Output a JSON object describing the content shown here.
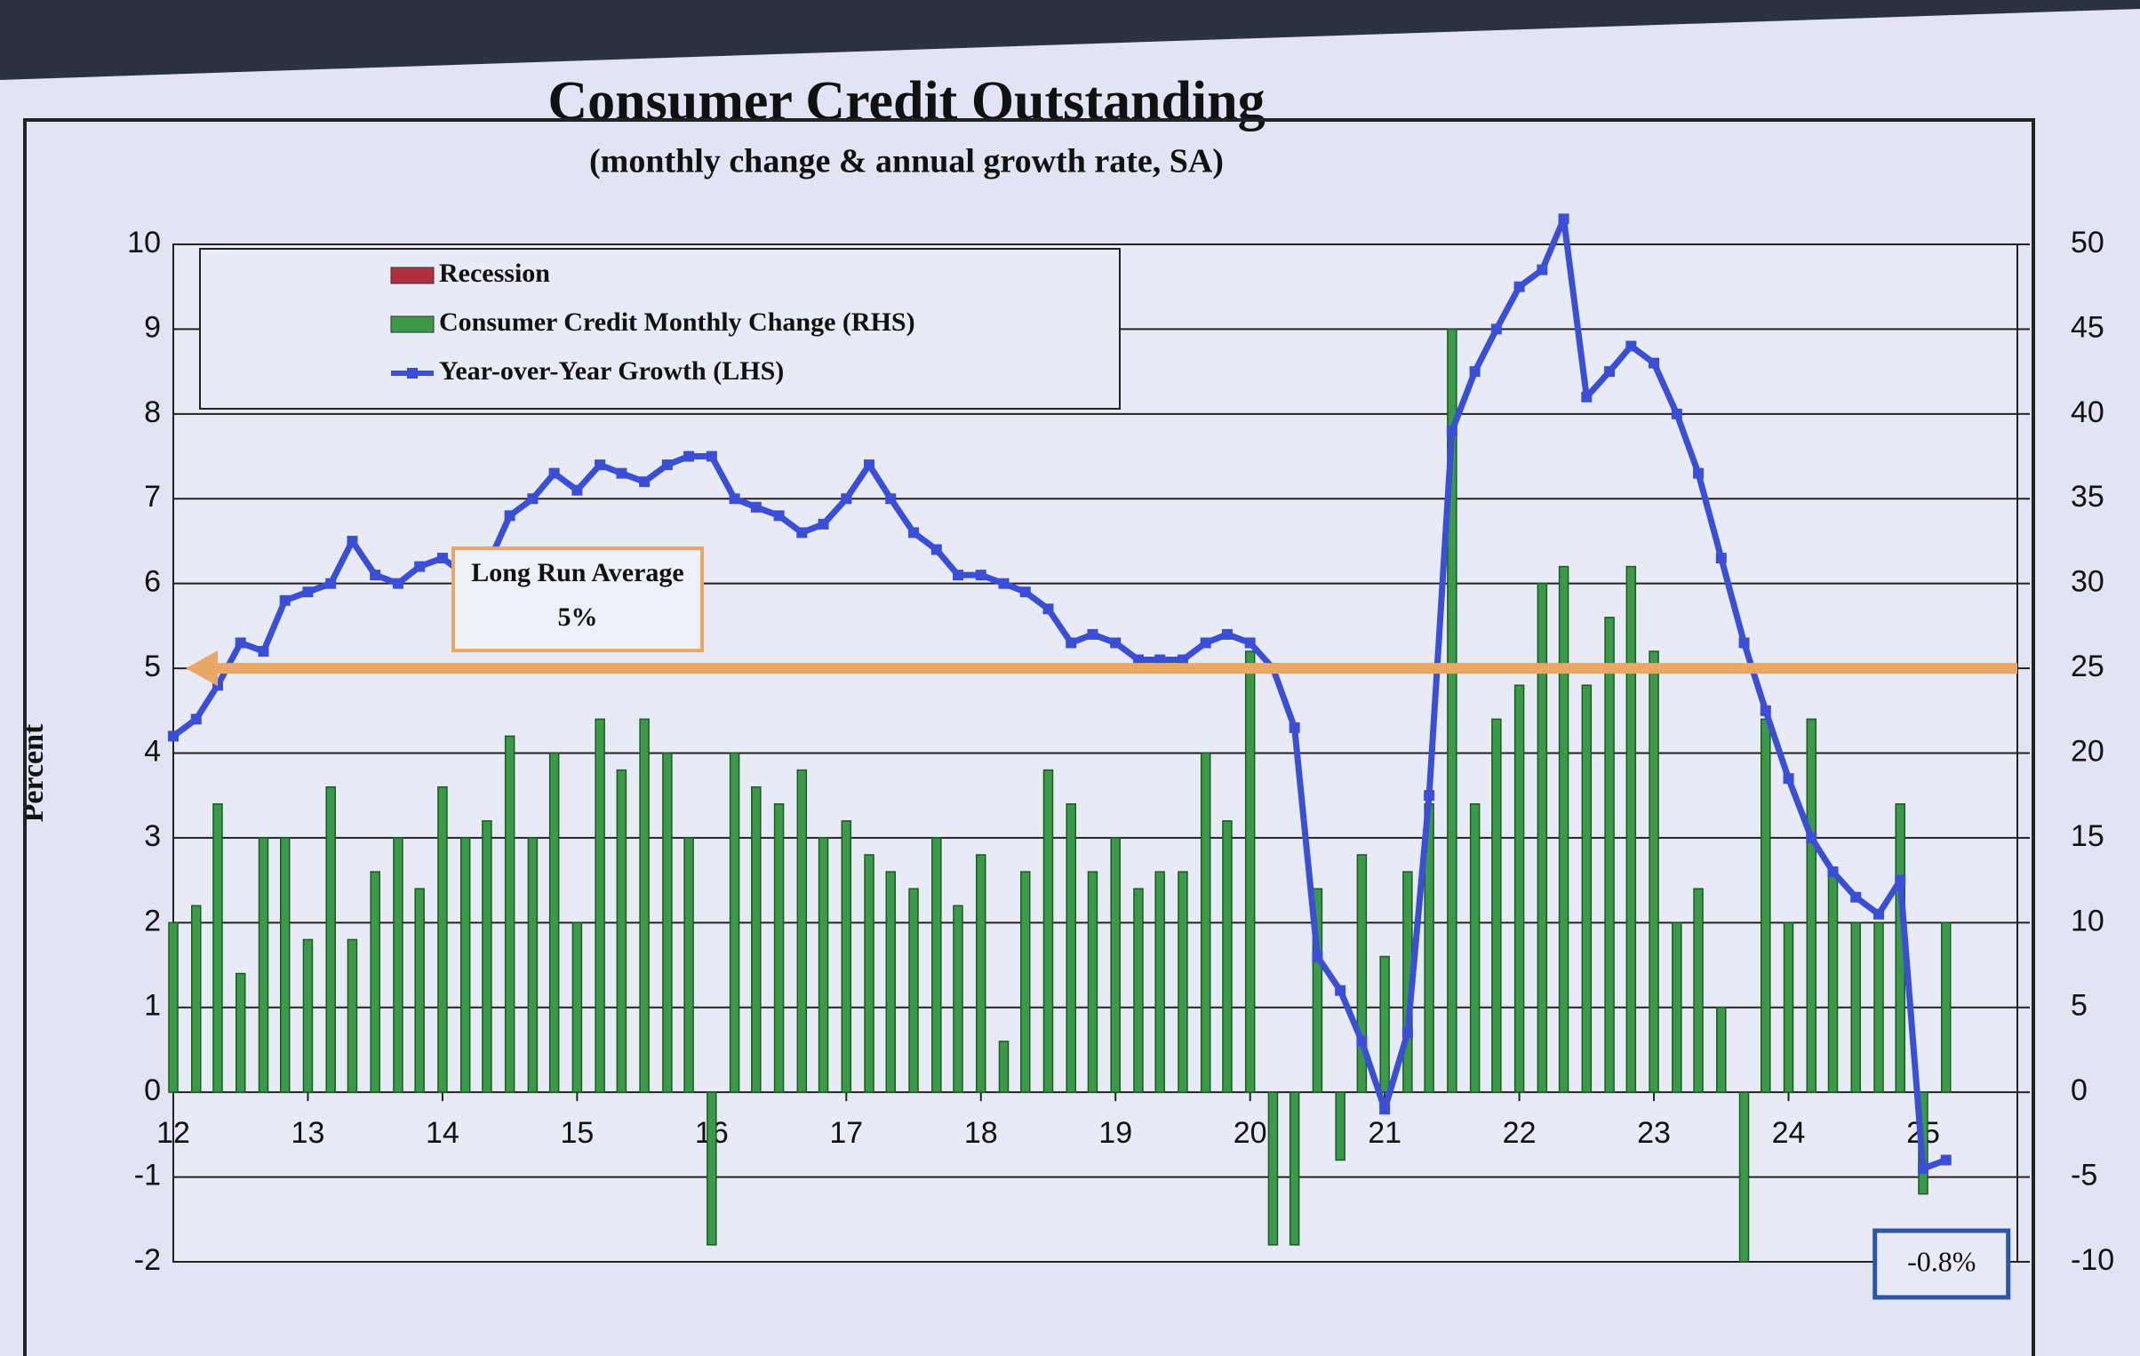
{
  "chart_data": {
    "type": "bar-line",
    "title": "Consumer Credit Outstanding",
    "subtitle": "(monthly change & annual growth rate, SA)",
    "ylabel": "Percent",
    "recession": {
      "name": "Recession",
      "color": "#b03040"
    },
    "x": [
      12,
      12.17,
      12.33,
      12.5,
      12.67,
      12.83,
      13,
      13.17,
      13.33,
      13.5,
      13.67,
      13.83,
      14,
      14.17,
      14.33,
      14.5,
      14.67,
      14.83,
      15,
      15.17,
      15.33,
      15.5,
      15.67,
      15.83,
      16,
      16.17,
      16.33,
      16.5,
      16.67,
      16.83,
      17,
      17.17,
      17.33,
      17.5,
      17.67,
      17.83,
      18,
      18.17,
      18.33,
      18.5,
      18.67,
      18.83,
      19,
      19.17,
      19.33,
      19.5,
      19.67,
      19.83,
      20,
      20.17,
      20.33,
      20.5,
      20.67,
      20.83,
      21,
      21.17,
      21.33,
      21.5,
      21.67,
      21.83,
      22,
      22.17,
      22.33,
      22.5,
      22.67,
      22.83,
      23,
      23.17,
      23.33,
      23.5,
      23.67,
      23.83,
      24,
      24.17,
      24.33,
      24.5,
      24.67,
      24.83,
      25,
      25.17
    ],
    "series": [
      {
        "name": "Consumer Credit Monthly Change (RHS)",
        "color": "#3a9a48",
        "axis": "y2",
        "values": [
          10,
          11,
          17,
          7,
          15,
          15,
          9,
          18,
          9,
          13,
          15,
          12,
          18,
          15,
          16,
          21,
          15,
          20,
          10,
          22,
          19,
          22,
          20,
          15,
          -9,
          20,
          18,
          17,
          19,
          15,
          16,
          14,
          13,
          12,
          15,
          11,
          14,
          3,
          13,
          19,
          17,
          13,
          15,
          12,
          13,
          13,
          20,
          16,
          26,
          -9,
          -9,
          12,
          -4,
          14,
          8,
          13,
          17,
          45,
          17,
          22,
          24,
          30,
          31,
          24,
          28,
          31,
          26,
          10,
          12,
          5,
          -10,
          22,
          10,
          22,
          13,
          10,
          10,
          17,
          -6,
          10
        ]
      },
      {
        "name": "Year-over-Year Growth (LHS)",
        "color": "#3a4fd6",
        "axis": "y",
        "values": [
          4.2,
          4.4,
          4.8,
          5.3,
          5.2,
          5.8,
          5.9,
          6.0,
          6.5,
          6.1,
          6.0,
          6.2,
          6.3,
          6.1,
          6.2,
          6.8,
          7.0,
          7.3,
          7.1,
          7.4,
          7.3,
          7.2,
          7.4,
          7.5,
          7.5,
          7.0,
          6.9,
          6.8,
          6.6,
          6.7,
          7.0,
          7.4,
          7.0,
          6.6,
          6.4,
          6.1,
          6.1,
          6.0,
          5.9,
          5.7,
          5.3,
          5.4,
          5.3,
          5.1,
          5.1,
          5.1,
          5.3,
          5.4,
          5.3,
          5.0,
          4.3,
          1.6,
          1.2,
          0.6,
          -0.2,
          0.7,
          3.5,
          7.8,
          8.5,
          9.0,
          9.5,
          9.7,
          10.3,
          8.2,
          8.5,
          8.8,
          8.6,
          8.0,
          7.3,
          6.3,
          5.3,
          4.5,
          3.7,
          3.0,
          2.6,
          2.3,
          2.1,
          2.5,
          -0.9,
          -0.8
        ]
      }
    ],
    "xlim": [
      12,
      25.7
    ],
    "xticks": [
      12,
      13,
      14,
      15,
      16,
      17,
      18,
      19,
      20,
      21,
      22,
      23,
      24,
      25
    ],
    "ylim": [
      -2,
      10
    ],
    "yticks": [
      -2,
      -1,
      0,
      1,
      2,
      3,
      4,
      5,
      6,
      7,
      8,
      9,
      10
    ],
    "y2lim": [
      -10,
      50
    ],
    "y2ticks": [
      -10,
      -5,
      0,
      5,
      10,
      15,
      20,
      25,
      30,
      35,
      40,
      45,
      50
    ],
    "grid": true,
    "reference_line": {
      "label": "Long Run Average",
      "value": 5,
      "value_label": "5%",
      "color": "#e8a765"
    },
    "end_label": {
      "value": -0.8,
      "label": "-0.8%"
    }
  }
}
